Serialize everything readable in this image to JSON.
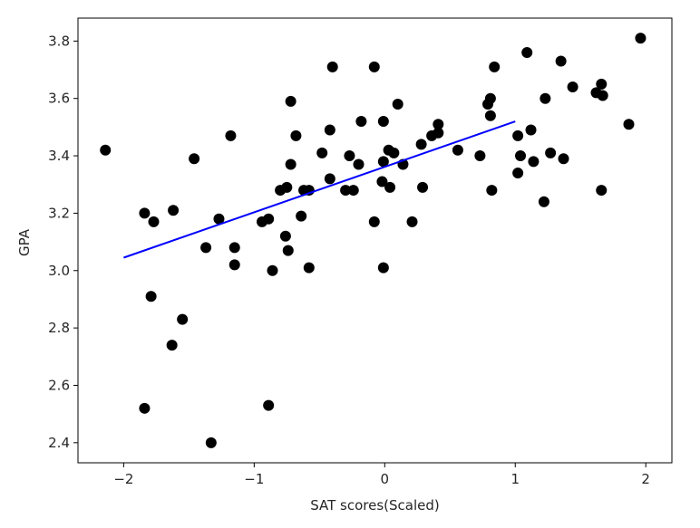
{
  "chart_data": {
    "type": "scatter",
    "title": "",
    "xlabel": "SAT scores(Scaled)",
    "ylabel": "GPA",
    "xlim": [
      -2.35,
      2.2
    ],
    "ylim": [
      2.33,
      3.88
    ],
    "xticks": [
      {
        "value": -2,
        "label": "−2"
      },
      {
        "value": -1,
        "label": "−1"
      },
      {
        "value": 0,
        "label": "0"
      },
      {
        "value": 1,
        "label": "1"
      },
      {
        "value": 2,
        "label": "2"
      }
    ],
    "yticks": [
      {
        "value": 2.4,
        "label": "2.4"
      },
      {
        "value": 2.6,
        "label": "2.6"
      },
      {
        "value": 2.8,
        "label": "2.8"
      },
      {
        "value": 3.0,
        "label": "3.0"
      },
      {
        "value": 3.2,
        "label": "3.2"
      },
      {
        "value": 3.4,
        "label": "3.4"
      },
      {
        "value": 3.6,
        "label": "3.6"
      },
      {
        "value": 3.8,
        "label": "3.8"
      }
    ],
    "grid": false,
    "legend": "none",
    "points_color": "#000000",
    "fit_color": "#0000ff",
    "points": [
      [
        -2.14,
        3.42
      ],
      [
        -1.84,
        3.2
      ],
      [
        -1.84,
        2.52
      ],
      [
        -1.77,
        3.17
      ],
      [
        -1.79,
        2.91
      ],
      [
        -1.62,
        3.21
      ],
      [
        -1.63,
        2.74
      ],
      [
        -1.55,
        2.83
      ],
      [
        -1.46,
        3.39
      ],
      [
        -1.37,
        3.08
      ],
      [
        -1.33,
        2.4
      ],
      [
        -1.27,
        3.18
      ],
      [
        -1.18,
        3.47
      ],
      [
        -1.15,
        3.08
      ],
      [
        -1.15,
        3.02
      ],
      [
        -0.94,
        3.17
      ],
      [
        -0.89,
        3.18
      ],
      [
        -0.89,
        2.53
      ],
      [
        -0.86,
        3.0
      ],
      [
        -0.8,
        3.28
      ],
      [
        -0.76,
        3.12
      ],
      [
        -0.75,
        3.29
      ],
      [
        -0.74,
        3.07
      ],
      [
        -0.72,
        3.37
      ],
      [
        -0.72,
        3.59
      ],
      [
        -0.68,
        3.47
      ],
      [
        -0.64,
        3.19
      ],
      [
        -0.62,
        3.28
      ],
      [
        -0.58,
        3.28
      ],
      [
        -0.58,
        3.01
      ],
      [
        -0.48,
        3.41
      ],
      [
        -0.42,
        3.49
      ],
      [
        -0.42,
        3.32
      ],
      [
        -0.4,
        3.71
      ],
      [
        -0.3,
        3.28
      ],
      [
        -0.27,
        3.4
      ],
      [
        -0.24,
        3.28
      ],
      [
        -0.2,
        3.37
      ],
      [
        -0.18,
        3.52
      ],
      [
        -0.08,
        3.17
      ],
      [
        -0.08,
        3.71
      ],
      [
        -0.02,
        3.31
      ],
      [
        -0.01,
        3.52
      ],
      [
        -0.01,
        3.38
      ],
      [
        -0.01,
        3.01
      ],
      [
        0.03,
        3.42
      ],
      [
        0.04,
        3.29
      ],
      [
        0.07,
        3.41
      ],
      [
        0.1,
        3.58
      ],
      [
        0.14,
        3.37
      ],
      [
        0.21,
        3.17
      ],
      [
        0.28,
        3.44
      ],
      [
        0.29,
        3.29
      ],
      [
        0.36,
        3.47
      ],
      [
        0.41,
        3.48
      ],
      [
        0.41,
        3.51
      ],
      [
        0.56,
        3.42
      ],
      [
        0.73,
        3.4
      ],
      [
        0.79,
        3.58
      ],
      [
        0.81,
        3.6
      ],
      [
        0.81,
        3.54
      ],
      [
        0.82,
        3.28
      ],
      [
        0.84,
        3.71
      ],
      [
        1.02,
        3.47
      ],
      [
        1.02,
        3.34
      ],
      [
        1.04,
        3.4
      ],
      [
        1.09,
        3.76
      ],
      [
        1.12,
        3.49
      ],
      [
        1.14,
        3.38
      ],
      [
        1.22,
        3.24
      ],
      [
        1.23,
        3.6
      ],
      [
        1.27,
        3.41
      ],
      [
        1.35,
        3.73
      ],
      [
        1.37,
        3.39
      ],
      [
        1.44,
        3.64
      ],
      [
        1.62,
        3.62
      ],
      [
        1.66,
        3.65
      ],
      [
        1.67,
        3.61
      ],
      [
        1.66,
        3.28
      ],
      [
        1.87,
        3.51
      ],
      [
        1.96,
        3.81
      ]
    ],
    "fit_line": {
      "x": [
        -2.0,
        1.0
      ],
      "y": [
        3.045,
        3.52
      ]
    }
  }
}
